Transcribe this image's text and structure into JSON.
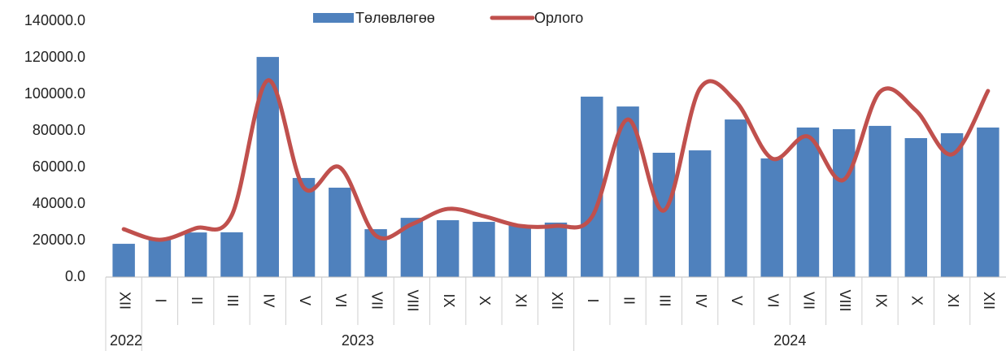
{
  "chart_data": {
    "type": "bar_line",
    "categories": [
      "XII",
      "I",
      "II",
      "III",
      "IV",
      "V",
      "VI",
      "VII",
      "VIII",
      "IX",
      "X",
      "XI",
      "XII",
      "I",
      "II",
      "III",
      "IV",
      "V",
      "VI",
      "VII",
      "VIII",
      "IX",
      "X",
      "XI",
      "XII"
    ],
    "groups": [
      {
        "label": "2022",
        "span": 1
      },
      {
        "label": "2023",
        "span": 12
      },
      {
        "label": "2024",
        "span": 12
      }
    ],
    "series": [
      {
        "name": "Төлөвлөгөө",
        "type": "bar",
        "color": "#4f81bd",
        "values": [
          18200,
          21300,
          24400,
          24500,
          120400,
          54200,
          48900,
          26200,
          32400,
          31100,
          30200,
          28400,
          29800,
          98700,
          93300,
          68000,
          69300,
          86200,
          64900,
          81800,
          80900,
          82700,
          76000,
          78700,
          81800
        ]
      },
      {
        "name": "Орлого",
        "type": "line",
        "smooth": true,
        "color": "#c0504d",
        "values": [
          26200,
          20400,
          26700,
          33800,
          107600,
          48900,
          60000,
          22700,
          28900,
          37300,
          33300,
          28000,
          28000,
          32900,
          86200,
          36400,
          103100,
          96000,
          64900,
          76900,
          53300,
          101300,
          91100,
          67100,
          101800
        ]
      }
    ],
    "ylim": [
      0,
      140000
    ],
    "yticks": [
      {
        "value": 0,
        "label": "0.0"
      },
      {
        "value": 20000,
        "label": "20000.0"
      },
      {
        "value": 40000,
        "label": "40000.0"
      },
      {
        "value": 60000,
        "label": "60000.0"
      },
      {
        "value": 80000,
        "label": "80000.0"
      },
      {
        "value": 100000,
        "label": "100000.0"
      },
      {
        "value": 120000,
        "label": "120000.0"
      },
      {
        "value": 140000,
        "label": "140000.0"
      }
    ],
    "legend": "top"
  }
}
